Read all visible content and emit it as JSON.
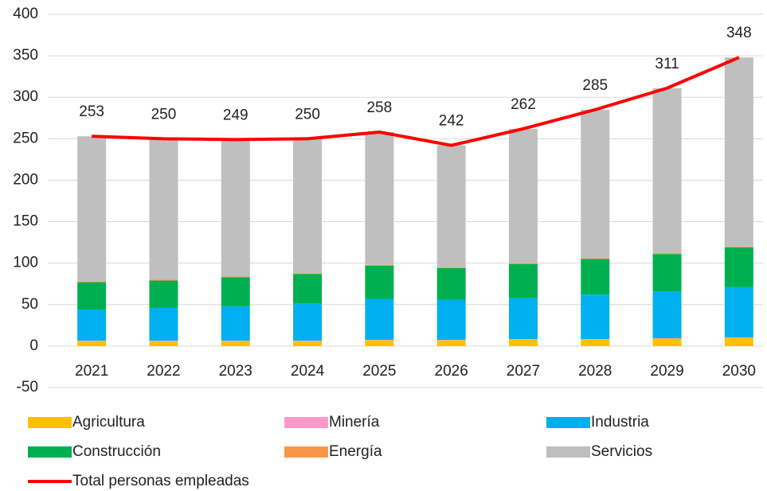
{
  "chart_data": {
    "type": "bar",
    "categories": [
      "2021",
      "2022",
      "2023",
      "2024",
      "2025",
      "2026",
      "2027",
      "2028",
      "2029",
      "2030"
    ],
    "ylim": [
      -50,
      400
    ],
    "yticks": [
      -50,
      0,
      50,
      100,
      150,
      200,
      250,
      300,
      350,
      400
    ],
    "grid": true,
    "stacked": true,
    "series": [
      {
        "name": "Agricultura",
        "color": "#ffc000",
        "values": [
          6,
          6,
          6,
          6,
          7,
          7,
          8,
          8,
          9,
          10
        ]
      },
      {
        "name": "Minería",
        "color": "#ff99cc",
        "values": [
          0.5,
          0.5,
          0.5,
          0.5,
          0.5,
          0.5,
          0.5,
          0.5,
          0.5,
          0.5
        ]
      },
      {
        "name": "Industria",
        "color": "#00b0f0",
        "values": [
          37.5,
          39.5,
          41.5,
          44.5,
          49.5,
          48.5,
          49.5,
          53.5,
          56.5,
          60.5
        ]
      },
      {
        "name": "Construcción",
        "color": "#00b050",
        "values": [
          33,
          33,
          35,
          36,
          40,
          38,
          41,
          43,
          45,
          48
        ]
      },
      {
        "name": "Energía",
        "color": "#f79646",
        "values": [
          1,
          1,
          1,
          1,
          1,
          1,
          1,
          1,
          1,
          1
        ]
      },
      {
        "name": "Servicios",
        "color": "#bfbfbf",
        "values": [
          175,
          170,
          165,
          162,
          160,
          147,
          162,
          179,
          199,
          228
        ]
      },
      {
        "name": "Total personas empleadas",
        "color": "#ff0000",
        "type": "line",
        "values": [
          253,
          250,
          249,
          250,
          258,
          242,
          262,
          285,
          311,
          348
        ]
      }
    ]
  }
}
